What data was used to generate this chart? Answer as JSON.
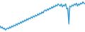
{
  "values": [
    18,
    16,
    17,
    15,
    16,
    14,
    15,
    16,
    15,
    17,
    16,
    18,
    17,
    19,
    18,
    20,
    19,
    21,
    20,
    22,
    21,
    23,
    22,
    24,
    23,
    25,
    24,
    26,
    25,
    27,
    26,
    28,
    27,
    29,
    28,
    30,
    29,
    31,
    30,
    32,
    31,
    33,
    34,
    33,
    35,
    34,
    36,
    35,
    37,
    36,
    38,
    37,
    39,
    38,
    40,
    39,
    38,
    40,
    37,
    39,
    38,
    40,
    35,
    36,
    20,
    38,
    37,
    39,
    38,
    40,
    39,
    41,
    38,
    40,
    39,
    41,
    40,
    42,
    41,
    40
  ],
  "line_color": "#3d9dd0",
  "background_color": "#ffffff",
  "linewidth": 1.1
}
